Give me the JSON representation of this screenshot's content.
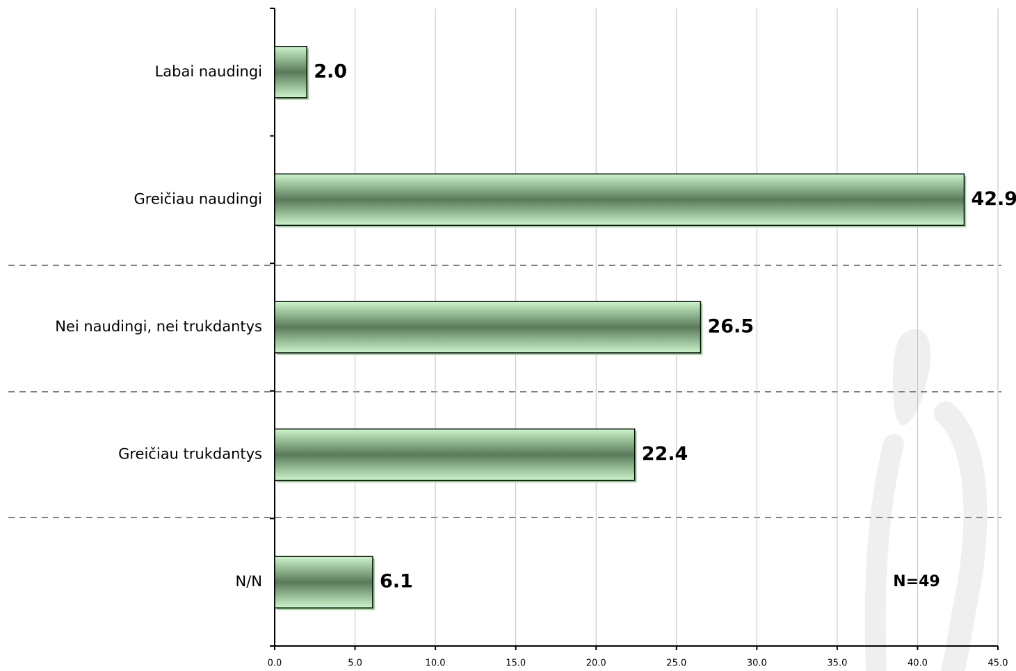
{
  "chart_data": {
    "type": "bar",
    "orientation": "horizontal",
    "categories": [
      "Labai naudingi",
      "Greičiau naudingi",
      "Nei naudingi, nei trukdantys",
      "Greičiau trukdantys",
      "N/N"
    ],
    "values": [
      2.0,
      42.9,
      26.5,
      22.4,
      6.1
    ],
    "value_labels": [
      "2.0",
      "42.9",
      "26.5",
      "22.4",
      "6.1"
    ],
    "color": "#5a7a5a",
    "xlim": [
      0,
      45
    ],
    "xticks": [
      {
        "value": 0,
        "label": "0.0"
      },
      {
        "value": 5,
        "label": "5.0"
      },
      {
        "value": 10,
        "label": "10.0"
      },
      {
        "value": 15,
        "label": "15.0"
      },
      {
        "value": 20,
        "label": "20.0"
      },
      {
        "value": 25,
        "label": "25.0"
      },
      {
        "value": 30,
        "label": "30.0"
      },
      {
        "value": 35,
        "label": "35.0"
      },
      {
        "value": 40,
        "label": "40.0"
      },
      {
        "value": 45,
        "label": "45.0"
      }
    ],
    "grid": true,
    "annotation": "N=49"
  }
}
